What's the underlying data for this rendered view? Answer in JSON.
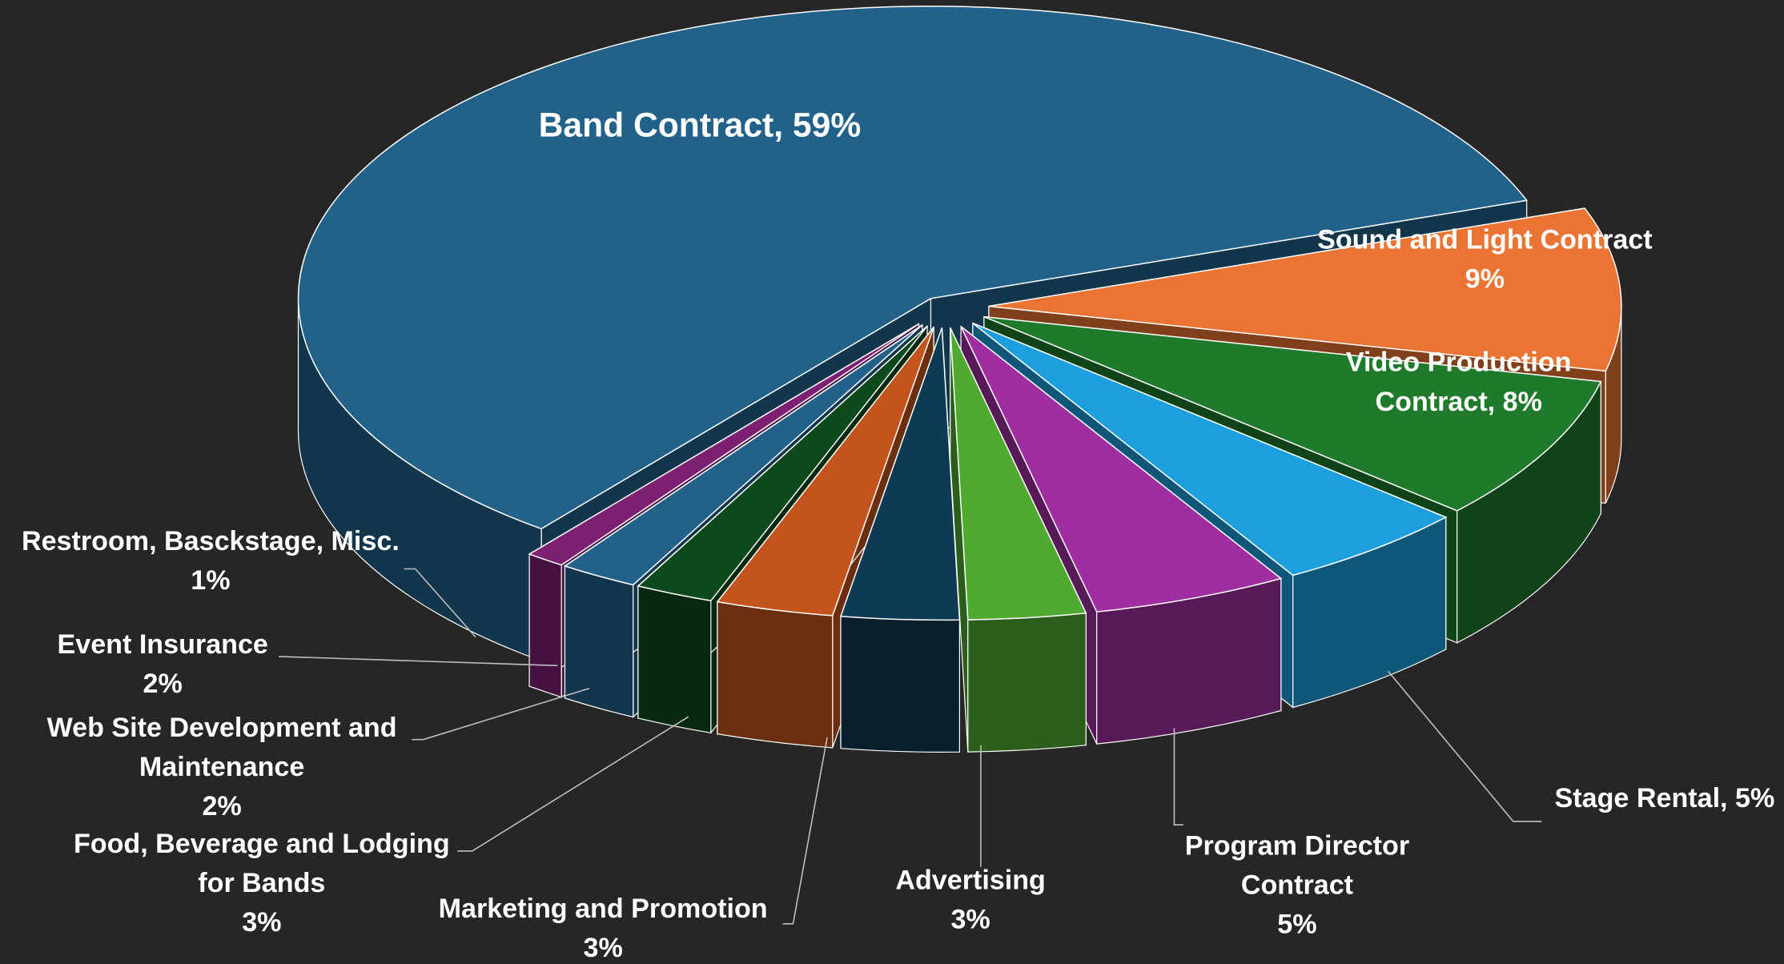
{
  "chart_data": {
    "type": "pie3d",
    "values": [
      59,
      9,
      8,
      5,
      5,
      3,
      3,
      3,
      2,
      2,
      1
    ],
    "labels": [
      [
        "Band Contract, 59%"
      ],
      [
        "Sound and Light Contract",
        "9%"
      ],
      [
        "Video Production",
        "Contract, 8%"
      ],
      [
        "Stage Rental, 5%"
      ],
      [
        "Program Director",
        "Contract",
        "5%"
      ],
      [
        "Advertising",
        "3%"
      ],
      [
        "Marketing and Promotion",
        "3%"
      ],
      [
        "Food, Beverage and Lodging",
        "for Bands",
        "3%"
      ],
      [
        "Web Site Development and",
        "Maintenance",
        "2%"
      ],
      [
        "Event Insurance",
        "2%"
      ],
      [
        "Restroom, Basckstage, Misc.",
        "1%"
      ]
    ],
    "colors": [
      "#22628a",
      "#ea7433",
      "#1f7a2c",
      "#1c9fdc",
      "#9f2ea0",
      "#4fab30",
      "#0e3b54",
      "#c2541c",
      "#0c4a1b",
      "#22628a",
      "#7d2073"
    ]
  }
}
